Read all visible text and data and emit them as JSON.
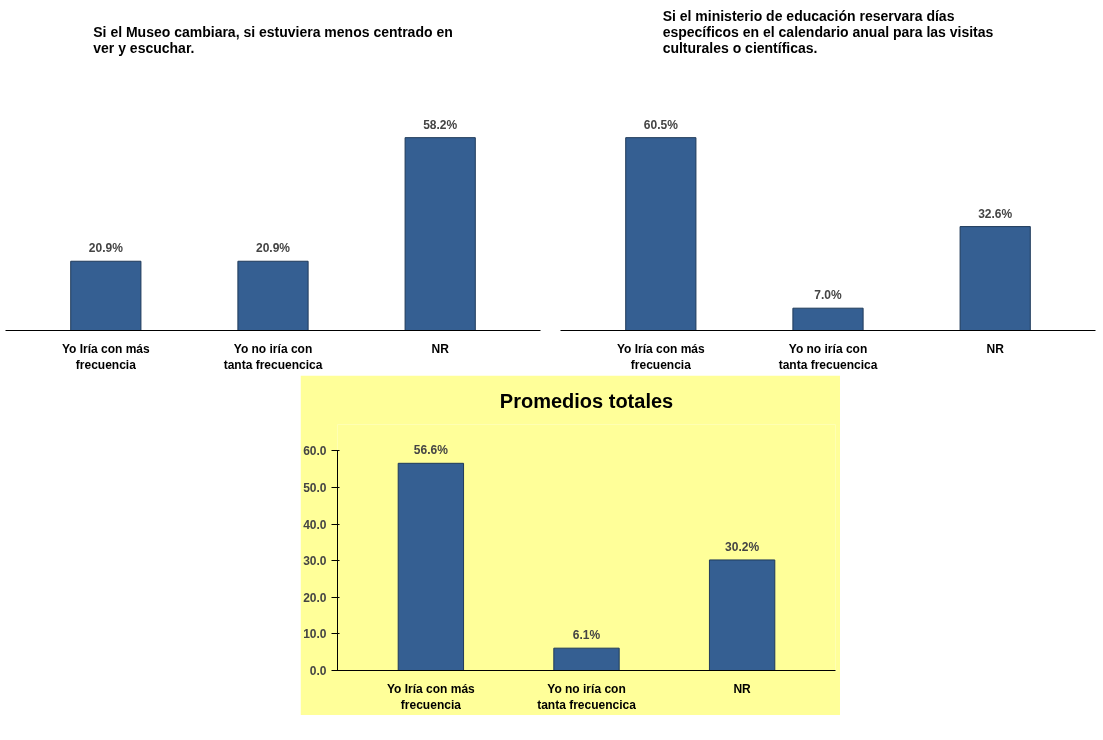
{
  "chart_data": [
    {
      "type": "bar",
      "title": "Si el Museo cambiara, si estuviera menos centrado en ver y escuchar.",
      "categories": [
        "Yo Iría con más frecuencia",
        "Yo no iría con tanta frecuencica",
        "NR"
      ],
      "values": [
        20.9,
        20.9,
        58.2
      ],
      "value_labels": [
        "20.9%",
        "20.9%",
        "58.2%"
      ],
      "color": "#355f92",
      "tick_labels": "x",
      "grid": false
    },
    {
      "type": "bar",
      "title": "Si el ministerio de educación reservara días específicos en el calendario anual para las visitas culturales o científicas.",
      "categories": [
        "Yo Iría con más frecuencia",
        "Yo no iría con tanta frecuencica",
        "NR"
      ],
      "values": [
        60.5,
        7.0,
        32.6
      ],
      "value_labels": [
        "60.5%",
        "7.0%",
        "32.6%"
      ],
      "color": "#355f92",
      "tick_labels": "x",
      "grid": false
    },
    {
      "type": "bar",
      "title": "Promedios totales",
      "categories": [
        "Yo Iría con más frecuencia",
        "Yo no iría con tanta frecuencica",
        "NR"
      ],
      "values": [
        56.6,
        6.1,
        30.2
      ],
      "value_labels": [
        "56.6%",
        "6.1%",
        "30.2%"
      ],
      "color": "#355f92",
      "ylim": [
        0,
        60
      ],
      "yticks": [
        {
          "value": 0,
          "label": "0.0"
        },
        {
          "value": 10,
          "label": "10.0"
        },
        {
          "value": 20,
          "label": "20.0"
        },
        {
          "value": 30,
          "label": "30.0"
        },
        {
          "value": 40,
          "label": "40.0"
        },
        {
          "value": 50,
          "label": "50.0"
        },
        {
          "value": 60,
          "label": "60.0"
        }
      ],
      "grid": false
    }
  ]
}
